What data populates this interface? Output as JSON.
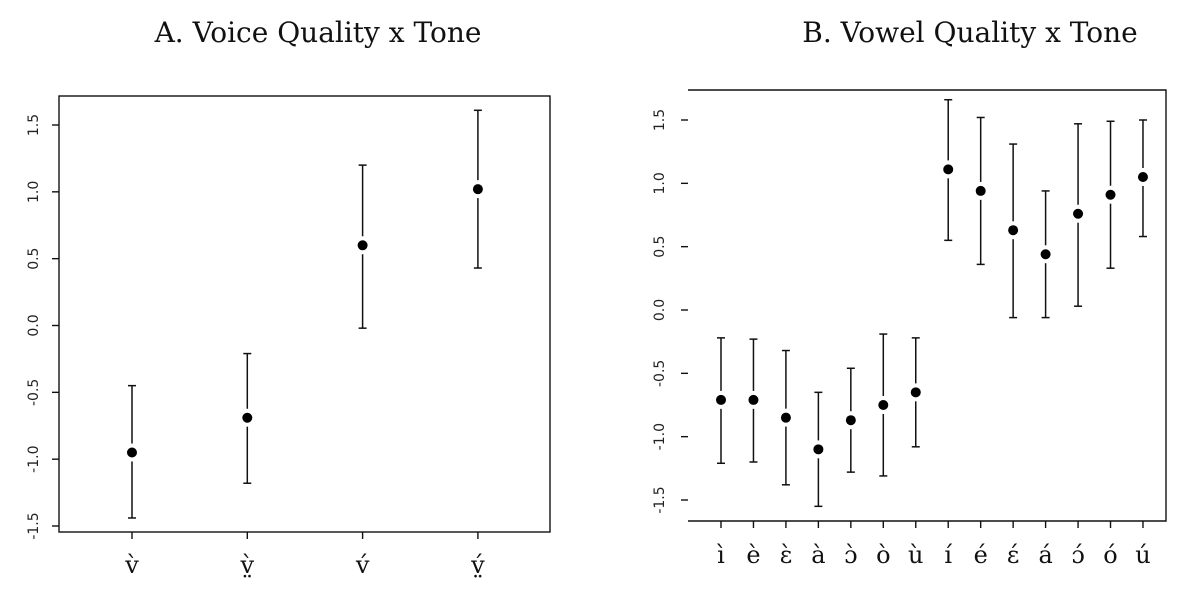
{
  "chart_data": [
    {
      "type": "scatter",
      "title": "A. Voice Quality x Tone",
      "xlabel": "",
      "ylabel": "",
      "ylim": [
        -1.55,
        1.75
      ],
      "yticks": [
        -1.5,
        -1.0,
        -0.5,
        0.0,
        0.5,
        1.0,
        1.5
      ],
      "ytick_labels": [
        "-1.5",
        "-1.0",
        "-0.5",
        "0.0",
        "0.5",
        "1.0",
        "1.5"
      ],
      "categories": [
        "v̀",
        "v̤̀",
        "v́",
        "v̤́"
      ],
      "series": [
        {
          "values": [
            -0.95,
            -0.69,
            0.6,
            1.02
          ],
          "lower": [
            -1.44,
            -1.18,
            -0.02,
            0.43
          ],
          "upper": [
            -0.45,
            -0.21,
            1.2,
            1.61
          ]
        }
      ],
      "error_bars": true,
      "grid": false
    },
    {
      "type": "scatter",
      "title": "B. Vowel Quality x Tone",
      "xlabel": "",
      "ylabel": "",
      "ylim": [
        -1.65,
        1.7
      ],
      "yticks": [
        -1.5,
        -1.0,
        -0.5,
        0.0,
        0.5,
        1.0,
        1.5
      ],
      "ytick_labels": [
        "-1.5",
        "-1.0",
        "-0.5",
        "0.0",
        "0.5",
        "1.0",
        "1.5"
      ],
      "categories": [
        "ì",
        "è",
        "ɛ̀",
        "à",
        "ɔ̀",
        "ò",
        "ù",
        "í",
        "é",
        "ɛ́",
        "á",
        "ɔ́",
        "ó",
        "ú"
      ],
      "series": [
        {
          "values": [
            -0.71,
            -0.71,
            -0.85,
            -1.1,
            -0.87,
            -0.75,
            -0.65,
            1.11,
            0.94,
            0.63,
            0.44,
            0.76,
            0.91,
            1.05
          ],
          "lower": [
            -1.21,
            -1.2,
            -1.38,
            -1.55,
            -1.28,
            -1.31,
            -1.08,
            0.55,
            0.36,
            -0.06,
            -0.06,
            0.03,
            0.33,
            0.58
          ],
          "upper": [
            -0.22,
            -0.23,
            -0.32,
            -0.65,
            -0.46,
            -0.19,
            -0.22,
            1.66,
            1.52,
            1.31,
            0.94,
            1.47,
            1.49,
            1.5
          ]
        }
      ],
      "error_bars": true,
      "grid": false
    }
  ]
}
